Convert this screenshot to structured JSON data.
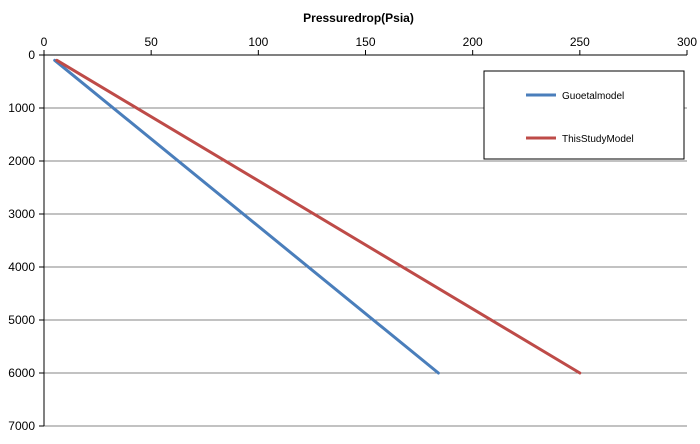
{
  "chart_data": {
    "type": "line",
    "title": "",
    "xlabel": "Pressuredrop(Psia)",
    "ylabel": "",
    "xlim": [
      0,
      300
    ],
    "ylim": [
      0,
      7000
    ],
    "y_inverted": true,
    "x_axis_position": "top",
    "x_ticks": [
      0,
      50,
      100,
      150,
      200,
      250,
      300
    ],
    "y_ticks": [
      0,
      1000,
      2000,
      3000,
      4000,
      5000,
      6000,
      7000
    ],
    "grid": "horizontal",
    "legend_position": "top-right",
    "series": [
      {
        "name": "Guoetalmodel",
        "color": "#4a7ebb",
        "x": [
          5,
          184
        ],
        "y": [
          100,
          6000
        ]
      },
      {
        "name": "ThisStudyModel",
        "color": "#be4b48",
        "x": [
          6,
          250
        ],
        "y": [
          100,
          6000
        ]
      }
    ]
  }
}
